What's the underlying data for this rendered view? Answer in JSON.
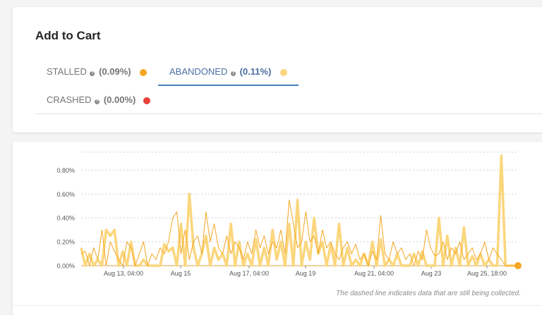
{
  "panel": {
    "title": "Add to Cart",
    "tabs": [
      {
        "label": "STALLED",
        "help": "?",
        "pct": "(0.09%)",
        "color": "#f5a623",
        "active": false
      },
      {
        "label": "ABANDONED",
        "help": "?",
        "pct": "(0.11%)",
        "color": "#fbd67c",
        "active": true
      },
      {
        "label": "CRASHED",
        "help": "?",
        "pct": "(0.00%)",
        "color": "#e8403a",
        "active": false
      }
    ]
  },
  "chart": {
    "footnote": "The dashed line indicates data that are still being collected."
  },
  "chart_data": {
    "type": "line",
    "y_ticks": [
      "0.00%",
      "0.20%",
      "0.40%",
      "0.60%",
      "0.80%"
    ],
    "ylim": [
      0,
      0.95
    ],
    "x_ticks": [
      "Aug 13, 04:00",
      "Aug 15",
      "Aug 17, 04:00",
      "Aug 19",
      "Aug 21, 04:00",
      "Aug 23",
      "Aug 25, 18:00"
    ],
    "grid": true,
    "series": [
      {
        "color": "#fbd67c",
        "values": [
          0.15,
          0,
          0.1,
          0,
          0.05,
          0,
          0.3,
          0.25,
          0.3,
          0,
          0.12,
          0,
          0.2,
          0,
          0,
          0.05,
          0,
          0,
          0,
          0,
          0.18,
          0.12,
          0.15,
          0,
          0.35,
          0,
          0.6,
          0.15,
          0,
          0.1,
          0.25,
          0,
          0.15,
          0.05,
          0.1,
          0,
          0.35,
          0,
          0.2,
          0,
          0.1,
          0,
          0.22,
          0,
          0.15,
          0,
          0.3,
          0.05,
          0.2,
          0,
          0.35,
          0,
          0.55,
          0,
          0.2,
          0.05,
          0.4,
          0.1,
          0.2,
          0,
          0.18,
          0,
          0.35,
          0,
          0.15,
          0,
          0.05,
          0,
          0.1,
          0,
          0.2,
          0,
          0.22,
          0,
          0.05,
          0,
          0.1,
          0,
          0,
          0,
          0.1,
          0,
          0.12,
          0,
          0,
          0,
          0.4,
          0,
          0.25,
          0,
          0.15,
          0,
          0.32,
          0,
          0.08,
          0,
          0.1,
          0,
          0.05,
          0,
          0,
          0.92,
          0,
          0,
          0,
          0
        ]
      },
      {
        "color": "#f5a623",
        "values": [
          0.1,
          0.12,
          0,
          0.15,
          0.05,
          0.3,
          0,
          0.2,
          0.12,
          0.05,
          0,
          0.2,
          0.15,
          0,
          0.1,
          0.2,
          0,
          0.1,
          0.05,
          0.15,
          0.1,
          0.2,
          0.4,
          0.45,
          0.1,
          0.3,
          0.05,
          0.2,
          0.25,
          0.1,
          0.45,
          0.2,
          0.35,
          0.15,
          0.1,
          0.25,
          0.1,
          0.2,
          0.15,
          0.05,
          0.2,
          0.1,
          0.3,
          0.15,
          0.25,
          0.1,
          0.2,
          0.15,
          0.3,
          0.1,
          0.55,
          0.35,
          0.15,
          0.2,
          0.45,
          0.2,
          0.25,
          0.1,
          0.3,
          0.15,
          0.2,
          0.1,
          0.05,
          0.15,
          0.2,
          0.1,
          0.18,
          0.05,
          0.1,
          0,
          0.12,
          0.05,
          0.42,
          0.1,
          0.05,
          0.2,
          0.1,
          0.15,
          0.05,
          0.1,
          0,
          0.12,
          0.05,
          0.3,
          0.15,
          0.08,
          0.1,
          0.2,
          0.05,
          0.15,
          0.1,
          0.2,
          0.05,
          0.1,
          0.15,
          0.05,
          0.1,
          0.2,
          0.05,
          0.15,
          0.1,
          0.05,
          0,
          0,
          0,
          0
        ]
      }
    ]
  }
}
